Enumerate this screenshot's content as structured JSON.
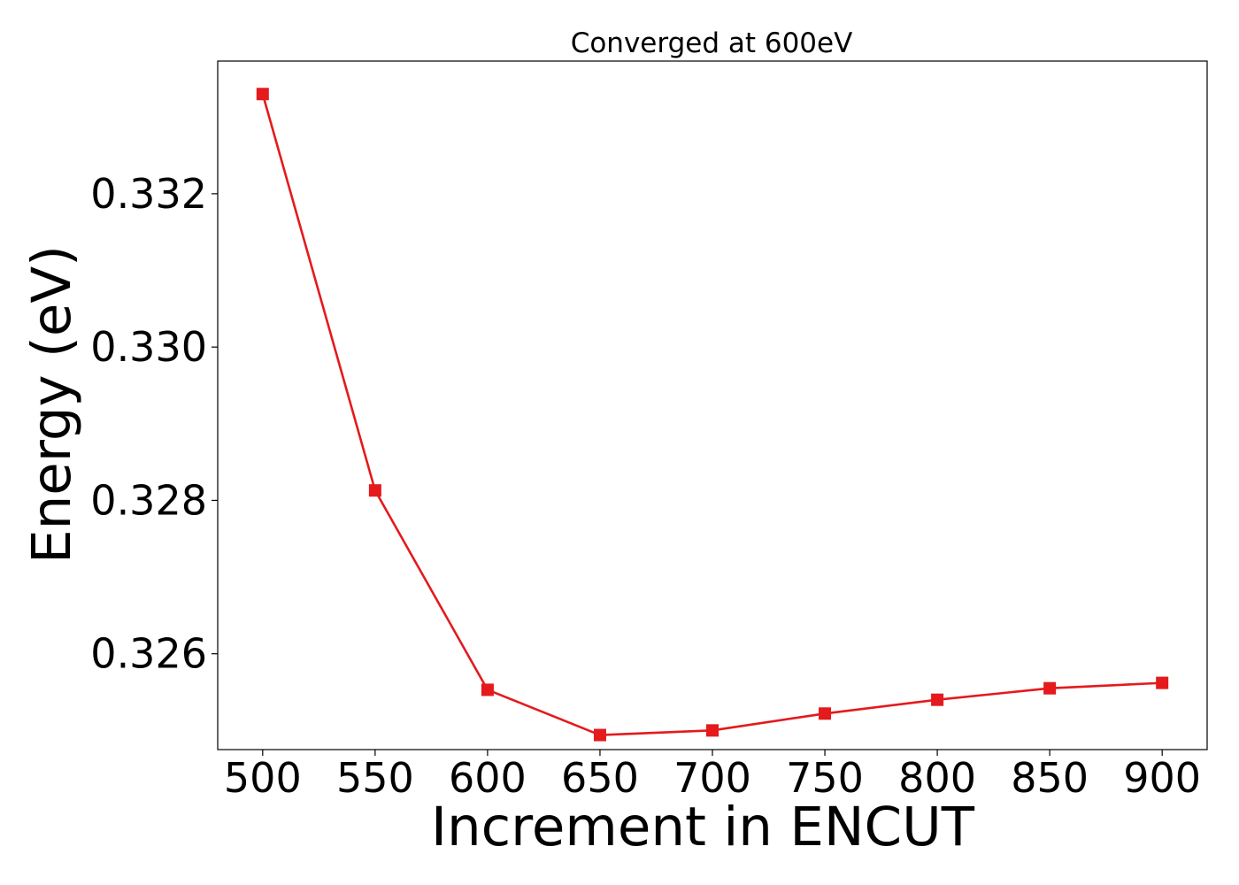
{
  "chart_data": {
    "type": "line",
    "title": "Converged at 600eV",
    "xlabel": "Increment in ENCUT",
    "ylabel": "Energy (eV)",
    "x": [
      500,
      550,
      600,
      650,
      700,
      750,
      800,
      850,
      900
    ],
    "series": [
      {
        "values": [
          0.3333,
          0.32813,
          0.32553,
          0.32494,
          0.325,
          0.32522,
          0.3254,
          0.32555,
          0.32562
        ],
        "color": "#e41a1c",
        "marker": "square"
      }
    ],
    "xticks": [
      500,
      550,
      600,
      650,
      700,
      750,
      800,
      850,
      900
    ],
    "xtick_labels": [
      "500",
      "550",
      "600",
      "650",
      "700",
      "750",
      "800",
      "850",
      "900"
    ],
    "yticks": [
      0.326,
      0.328,
      0.33,
      0.332
    ],
    "ytick_labels": [
      "0.326",
      "0.328",
      "0.330",
      "0.332"
    ],
    "xlim": [
      480,
      920
    ],
    "ylim": [
      0.32475,
      0.33373
    ],
    "grid": false,
    "legend": false
  }
}
